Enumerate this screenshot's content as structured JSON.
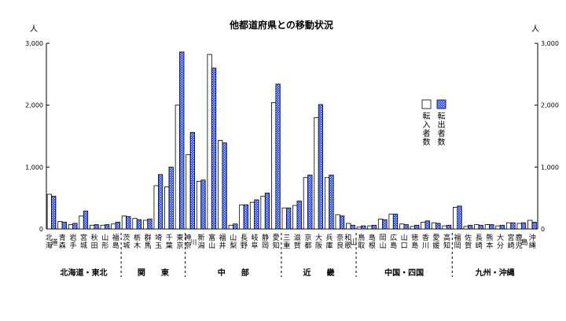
{
  "chart_data": {
    "type": "bar",
    "title": "他都道府県との移動状況",
    "unit_left": "人",
    "unit_right": "人",
    "ylim": [
      0,
      3000
    ],
    "y_ticks": [
      "0",
      "1,000",
      "2,000",
      "3,000"
    ],
    "y_tick_values": [
      0,
      1000,
      2000,
      3000
    ],
    "grid": false,
    "legend_position": "right",
    "series": [
      {
        "name": "転入者数",
        "color": "#ffffff",
        "values": [
          560,
          120,
          70,
          210,
          60,
          60,
          80,
          210,
          170,
          140,
          700,
          680,
          2000,
          1200,
          770,
          2820,
          1430,
          60,
          390,
          430,
          530,
          2040,
          340,
          380,
          830,
          1800,
          830,
          230,
          90,
          30,
          50,
          160,
          240,
          80,
          40,
          110,
          100,
          50,
          350,
          40,
          70,
          70,
          50,
          100,
          90,
          140
        ]
      },
      {
        "name": "転出者数",
        "color": "#3355ff",
        "values": [
          530,
          110,
          90,
          290,
          70,
          70,
          110,
          200,
          150,
          160,
          880,
          1000,
          2860,
          1560,
          790,
          2600,
          1390,
          80,
          390,
          470,
          580,
          2340,
          340,
          450,
          870,
          2010,
          870,
          210,
          60,
          50,
          60,
          150,
          240,
          70,
          60,
          130,
          90,
          60,
          370,
          60,
          60,
          70,
          60,
          100,
          100,
          110
        ]
      }
    ],
    "categories": [
      "北海道",
      "青森",
      "岩手",
      "宮城",
      "秋田",
      "山形",
      "福島",
      "茨城",
      "栃木",
      "群馬",
      "埼玉",
      "千葉",
      "東京",
      "神奈川",
      "新潟",
      "富山",
      "福井",
      "山梨",
      "長野",
      "岐阜",
      "静岡",
      "愛知",
      "三重",
      "滋賀",
      "京都",
      "大阪",
      "兵庫",
      "奈良",
      "和歌山",
      "鳥取",
      "島根",
      "岡山",
      "広島",
      "山口",
      "徳島",
      "香川",
      "愛媛",
      "高知",
      "福岡",
      "佐賀",
      "長崎",
      "熊本",
      "大分",
      "宮崎",
      "鹿児島",
      "沖縄"
    ],
    "regions": [
      {
        "label": "北海道・東北",
        "start": 0,
        "end": 6
      },
      {
        "label": "関　　東",
        "start": 7,
        "end": 12
      },
      {
        "label": "中　　部",
        "start": 13,
        "end": 21
      },
      {
        "label": "近　　畿",
        "start": 22,
        "end": 28
      },
      {
        "label": "中国・四国",
        "start": 29,
        "end": 37
      },
      {
        "label": "九州・沖縄",
        "start": 38,
        "end": 45
      }
    ],
    "legend": [
      {
        "label": "転入者数"
      },
      {
        "label": "転出者数"
      }
    ]
  }
}
